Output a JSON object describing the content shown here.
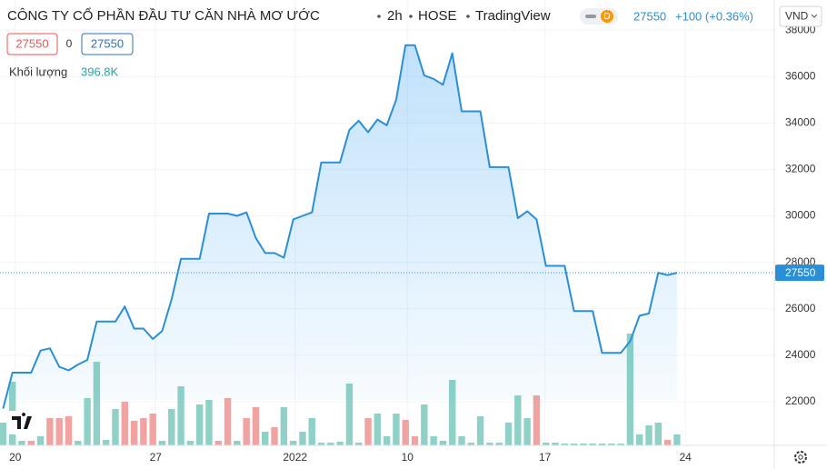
{
  "chart_data": {
    "type": "line",
    "title": "CÔNG TY CỔ PHẦN ĐẦU TƯ CĂN NHÀ MƠ ƯỚC",
    "interval": "2h",
    "exchange": "HOSE",
    "source": "TradingView",
    "badge": "D",
    "currency": "VND",
    "last_price": 27550,
    "change_label": "+100 (+0.36%)",
    "legend_boxes": [
      27550,
      0,
      27550
    ],
    "series": [
      {
        "color": "#2a8fd8",
        "values": [
          21700,
          23250,
          23250,
          23250,
          24200,
          24300,
          23500,
          23350,
          23600,
          23800,
          25450,
          25450,
          25450,
          26100,
          25150,
          25150,
          24700,
          25050,
          26400,
          28150,
          28150,
          28150,
          30100,
          30100,
          30100,
          30000,
          30150,
          29050,
          28400,
          28400,
          28200,
          29850,
          30000,
          30150,
          32300,
          32300,
          32300,
          33700,
          34100,
          33600,
          34150,
          33900,
          35000,
          37350,
          37350,
          36050,
          35900,
          35650,
          37000,
          34500,
          34500,
          34500,
          32100,
          32100,
          32100,
          29900,
          30200,
          29850,
          27850,
          27850,
          27850,
          25900,
          25900,
          25900,
          24100,
          24100,
          24100,
          24600,
          25700,
          25800,
          27550,
          27450,
          27550
        ]
      }
    ],
    "volume": {
      "label": "Khối lượng",
      "last_label": "396.8K",
      "values": [
        825000,
        2310000,
        165000,
        165000,
        330000,
        990000,
        990000,
        1056000,
        165000,
        1716000,
        3036000,
        198000,
        1320000,
        1584000,
        891000,
        990000,
        1155000,
        165000,
        1320000,
        2145000,
        165000,
        1485000,
        1650000,
        165000,
        1716000,
        165000,
        990000,
        1386000,
        495000,
        660000,
        1386000,
        165000,
        495000,
        990000,
        99000,
        99000,
        132000,
        2244000,
        99000,
        990000,
        1155000,
        330000,
        1155000,
        924000,
        330000,
        1485000,
        330000,
        165000,
        2376000,
        330000,
        99000,
        1056000,
        99000,
        99000,
        825000,
        1815000,
        990000,
        1815000,
        99000,
        99000,
        66000,
        66000,
        66000,
        66000,
        66000,
        66000,
        66000,
        4059000,
        396000,
        726000,
        825000,
        198000,
        396800
      ],
      "colors": [
        "#8fd1c6",
        "#8fd1c6",
        "#8fd1c6",
        "#f0a3a0",
        "#8fd1c6",
        "#f0a3a0",
        "#f0a3a0",
        "#f0a3a0",
        "#8fd1c6",
        "#8fd1c6",
        "#8fd1c6",
        "#8fd1c6",
        "#8fd1c6",
        "#f0a3a0",
        "#f0a3a0",
        "#f0a3a0",
        "#f0a3a0",
        "#8fd1c6",
        "#8fd1c6",
        "#8fd1c6",
        "#8fd1c6",
        "#8fd1c6",
        "#8fd1c6",
        "#f0a3a0",
        "#f0a3a0",
        "#8fd1c6",
        "#f0a3a0",
        "#f0a3a0",
        "#8fd1c6",
        "#f0a3a0",
        "#8fd1c6",
        "#8fd1c6",
        "#8fd1c6",
        "#8fd1c6",
        "#8fd1c6",
        "#8fd1c6",
        "#8fd1c6",
        "#8fd1c6",
        "#8fd1c6",
        "#f0a3a0",
        "#8fd1c6",
        "#8fd1c6",
        "#8fd1c6",
        "#f0a3a0",
        "#f0a3a0",
        "#8fd1c6",
        "#8fd1c6",
        "#8fd1c6",
        "#8fd1c6",
        "#8fd1c6",
        "#8fd1c6",
        "#8fd1c6",
        "#8fd1c6",
        "#8fd1c6",
        "#8fd1c6",
        "#8fd1c6",
        "#8fd1c6",
        "#f0a3a0",
        "#8fd1c6",
        "#8fd1c6",
        "#8fd1c6",
        "#8fd1c6",
        "#8fd1c6",
        "#8fd1c6",
        "#8fd1c6",
        "#8fd1c6",
        "#8fd1c6",
        "#8fd1c6",
        "#8fd1c6",
        "#8fd1c6",
        "#8fd1c6",
        "#f0a3a0",
        "#8fd1c6"
      ]
    },
    "xlim": [
      -0.33,
      82.4
    ],
    "xticks": [
      {
        "value": 1.3,
        "label": "20"
      },
      {
        "value": 16.3,
        "label": "27"
      },
      {
        "value": 31.2,
        "label": "2022"
      },
      {
        "value": 43.2,
        "label": "10"
      },
      {
        "value": 57.9,
        "label": "17"
      },
      {
        "value": 72.9,
        "label": "24"
      }
    ],
    "ylim": [
      20120,
      38200
    ],
    "yticks": [
      22000,
      24000,
      26000,
      28000,
      30000,
      32000,
      34000,
      36000,
      38000
    ],
    "grid": true
  }
}
